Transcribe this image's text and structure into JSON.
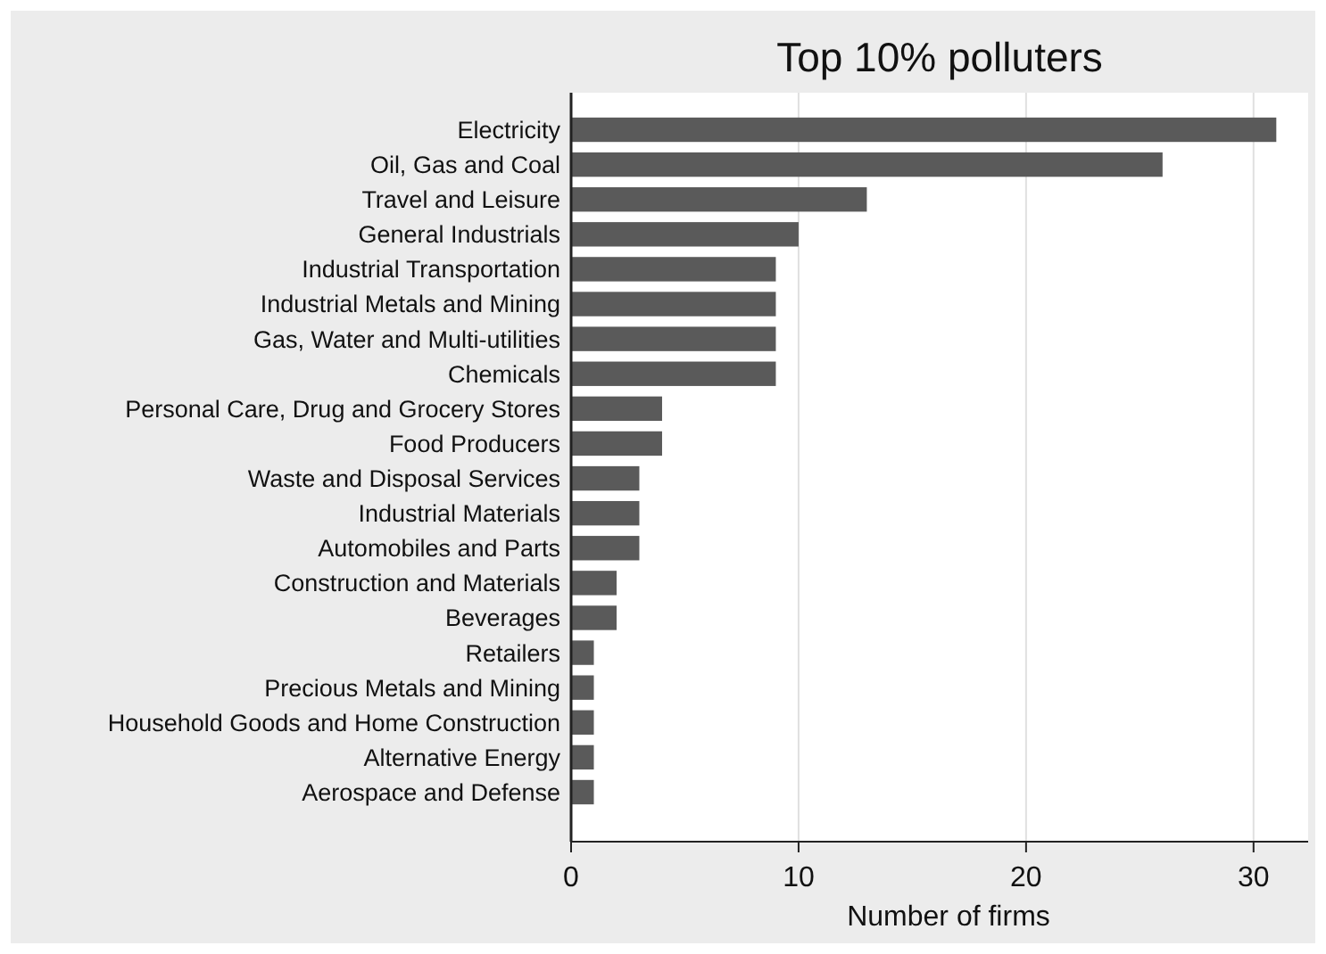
{
  "chart_data": {
    "type": "bar",
    "orientation": "horizontal",
    "title": "Top 10% polluters",
    "xlabel": "Number of firms",
    "categories": [
      "Electricity",
      "Oil, Gas and Coal",
      "Travel and Leisure",
      "General Industrials",
      "Industrial Transportation",
      "Industrial Metals and Mining",
      "Gas, Water and Multi-utilities",
      "Chemicals",
      "Personal Care, Drug and Grocery Stores",
      "Food Producers",
      "Waste and Disposal Services",
      "Industrial Materials",
      "Automobiles and Parts",
      "Construction and Materials",
      "Beverages",
      "Retailers",
      "Precious Metals and Mining",
      "Household Goods and Home Construction",
      "Alternative Energy",
      "Aerospace and Defense"
    ],
    "values": [
      31,
      26,
      13,
      10,
      9,
      9,
      9,
      9,
      4,
      4,
      3,
      3,
      3,
      2,
      2,
      1,
      1,
      1,
      1,
      1
    ],
    "color": "#5a5a5a",
    "xlim": [
      0,
      32.4
    ],
    "xticks": [
      0,
      10,
      20,
      30
    ],
    "grid": "x"
  }
}
